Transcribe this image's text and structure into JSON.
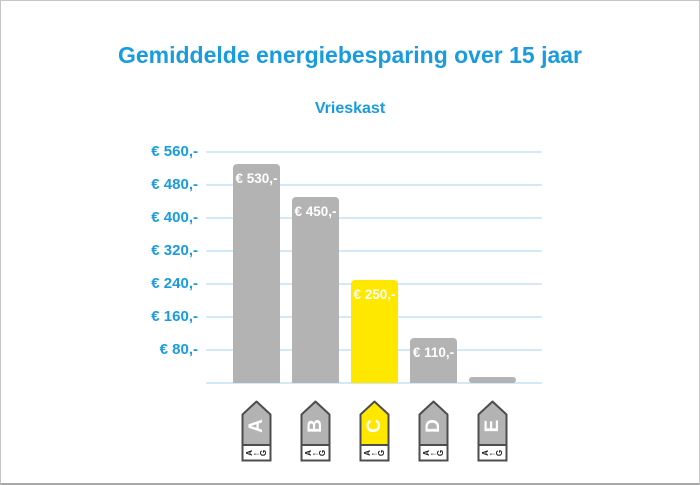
{
  "header": {
    "title": "Gemiddelde energiebesparing over 15 jaar",
    "subtitle": "Vrieskast"
  },
  "chart_data": {
    "type": "bar",
    "title": "Gemiddelde energiebesparing over 15 jaar",
    "subtitle": "Vrieskast",
    "categories": [
      "A",
      "B",
      "C",
      "D",
      "E"
    ],
    "values": [
      530,
      450,
      250,
      110,
      15
    ],
    "bar_labels": [
      "€ 530,-",
      "€ 450,-",
      "€ 250,-",
      "€ 110,-",
      ""
    ],
    "bar_colors": [
      "#b3b3b3",
      "#b3b3b3",
      "#ffe800",
      "#b3b3b3",
      "#b3b3b3"
    ],
    "yticks": [
      560,
      480,
      400,
      320,
      240,
      160,
      80
    ],
    "ytick_labels": [
      "€ 560,-",
      "€ 480,-",
      "€ 400,-",
      "€ 320,-",
      "€ 240,-",
      "€ 160,-",
      "€ 80,-"
    ],
    "ylim": [
      0,
      590
    ],
    "xlabel": "",
    "ylabel": "",
    "grid": true,
    "legend": null,
    "highlighted_category": "C"
  },
  "energy_labels": [
    {
      "letter": "A",
      "color": "#b3b3b3"
    },
    {
      "letter": "B",
      "color": "#b3b3b3"
    },
    {
      "letter": "C",
      "color": "#ffe800"
    },
    {
      "letter": "D",
      "color": "#b3b3b3"
    },
    {
      "letter": "E",
      "color": "#b3b3b3"
    }
  ],
  "energy_scale": {
    "best": "A",
    "arrow": "←",
    "worst": "G"
  },
  "colors": {
    "accent_blue": "#189cdf",
    "gridline_blue": "#d3e9f7",
    "bar_gray": "#b3b3b3",
    "highlight_yellow": "#ffe800",
    "tag_border": "#4d4d4f",
    "bar_label_text": "#ffffff"
  }
}
